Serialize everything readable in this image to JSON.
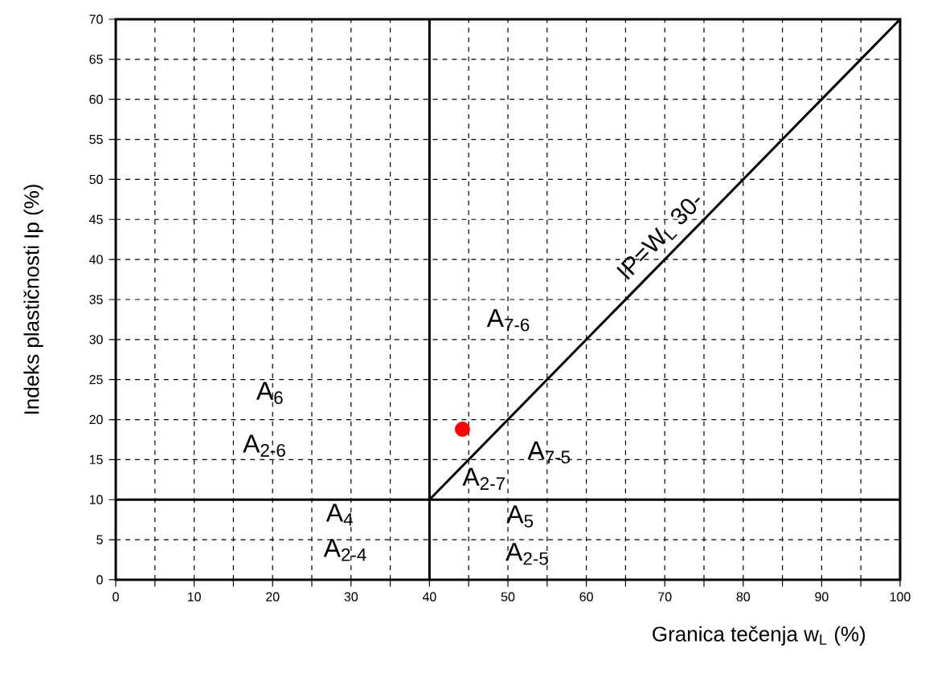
{
  "chart_data": {
    "type": "scatter",
    "xlabel": "Granica tečenja w$_{L}$ (%)",
    "ylabel": "Indeks plastičnosti Ip (%)",
    "xlim": [
      0,
      100
    ],
    "ylim": [
      0,
      70
    ],
    "xticks": [
      0,
      {
        "value": 5,
        "label": null
      },
      10,
      {
        "value": 15,
        "label": null
      },
      20,
      {
        "value": 25,
        "label": null
      },
      30,
      {
        "value": 35,
        "label": null
      },
      40,
      {
        "value": 45,
        "label": null
      },
      50,
      {
        "value": 55,
        "label": null
      },
      60,
      {
        "value": 65,
        "label": null
      },
      70,
      {
        "value": 75,
        "label": null
      },
      80,
      {
        "value": 85,
        "label": null
      },
      90,
      {
        "value": 95,
        "label": null
      },
      100
    ],
    "yticks": [
      0,
      5,
      10,
      15,
      20,
      25,
      30,
      35,
      40,
      45,
      50,
      55,
      60,
      65,
      70
    ],
    "grid": true,
    "series": [
      {
        "type": "line",
        "name": "IP=W$_{L}$ 30-",
        "color": "#000000",
        "x": [
          40,
          100
        ],
        "values": [
          10,
          70
        ]
      },
      {
        "type": "line",
        "color": "#000000",
        "x": [
          40,
          40
        ],
        "values": [
          0,
          70
        ]
      },
      {
        "type": "line",
        "color": "#000000",
        "x": [
          0,
          100
        ],
        "values": [
          10,
          10
        ]
      },
      {
        "color": "#ff0000",
        "x": [
          44.2
        ],
        "values": [
          18.8
        ]
      }
    ],
    "annotations": [
      "A$_{6}$",
      "A$_{2-6}$",
      "A$_{7-6}$",
      "A$_{7-5}$",
      "A$_{2-7}$",
      "A$_{4}$",
      "A$_{2-4}$",
      "A$_{5}$",
      "A$_{2-5}$"
    ]
  }
}
